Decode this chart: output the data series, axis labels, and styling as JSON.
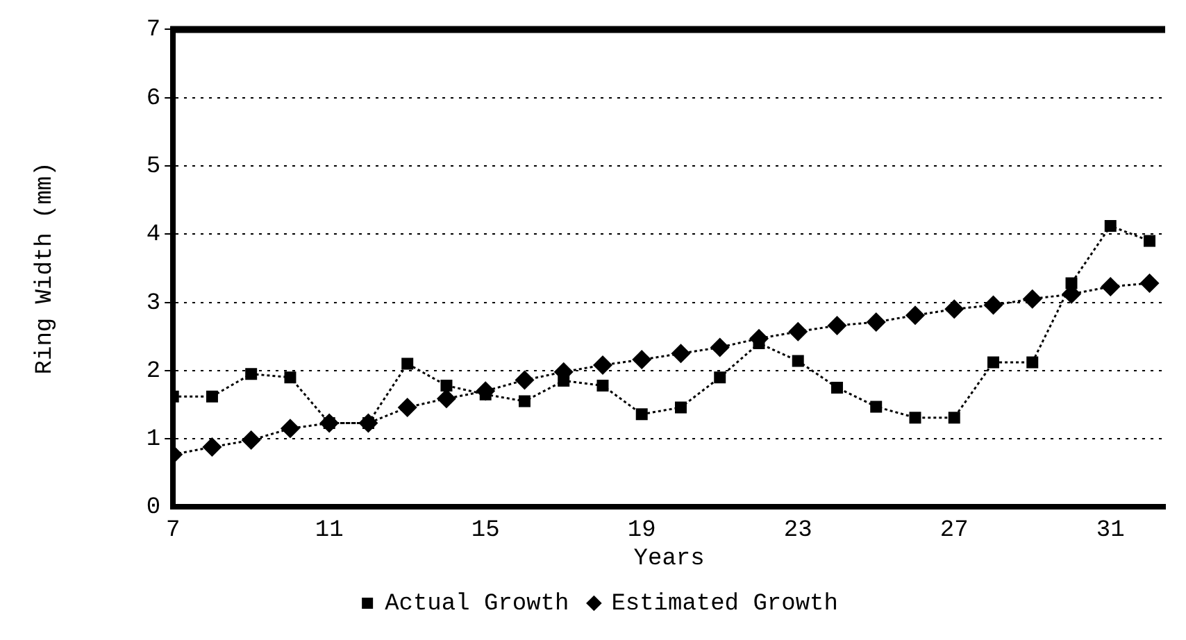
{
  "chart_data": {
    "type": "line",
    "xlabel": "Years",
    "ylabel": "Ring Width (mm)",
    "x": [
      7,
      8,
      9,
      10,
      11,
      12,
      13,
      14,
      15,
      16,
      17,
      18,
      19,
      20,
      21,
      22,
      23,
      24,
      25,
      26,
      27,
      28,
      29,
      30,
      31,
      32
    ],
    "series": [
      {
        "name": "Actual Growth",
        "color": "#000000",
        "marker": "square",
        "values": [
          1.62,
          1.62,
          1.95,
          1.9,
          1.23,
          1.23,
          2.1,
          1.78,
          1.65,
          1.55,
          1.85,
          1.78,
          1.36,
          1.46,
          1.9,
          2.4,
          2.14,
          1.75,
          1.47,
          1.31,
          1.31,
          2.12,
          2.12,
          3.28,
          4.12,
          3.9
        ]
      },
      {
        "name": "Estimated Growth",
        "color": "#000000",
        "marker": "diamond",
        "values": [
          0.77,
          0.88,
          0.98,
          1.15,
          1.23,
          1.23,
          1.46,
          1.59,
          1.7,
          1.86,
          1.98,
          2.08,
          2.16,
          2.25,
          2.34,
          2.47,
          2.57,
          2.66,
          2.71,
          2.81,
          2.9,
          2.96,
          3.05,
          3.12,
          3.23,
          3.28
        ]
      }
    ],
    "xlim": [
      7,
      32.4
    ],
    "xticks": [
      7,
      11,
      15,
      19,
      23,
      27,
      31
    ],
    "ylim": [
      0,
      7
    ],
    "yticks": [
      0,
      1,
      2,
      3,
      4,
      5,
      6,
      7
    ],
    "grid": "y",
    "legend": "bottom",
    "line_style": "dotted"
  }
}
